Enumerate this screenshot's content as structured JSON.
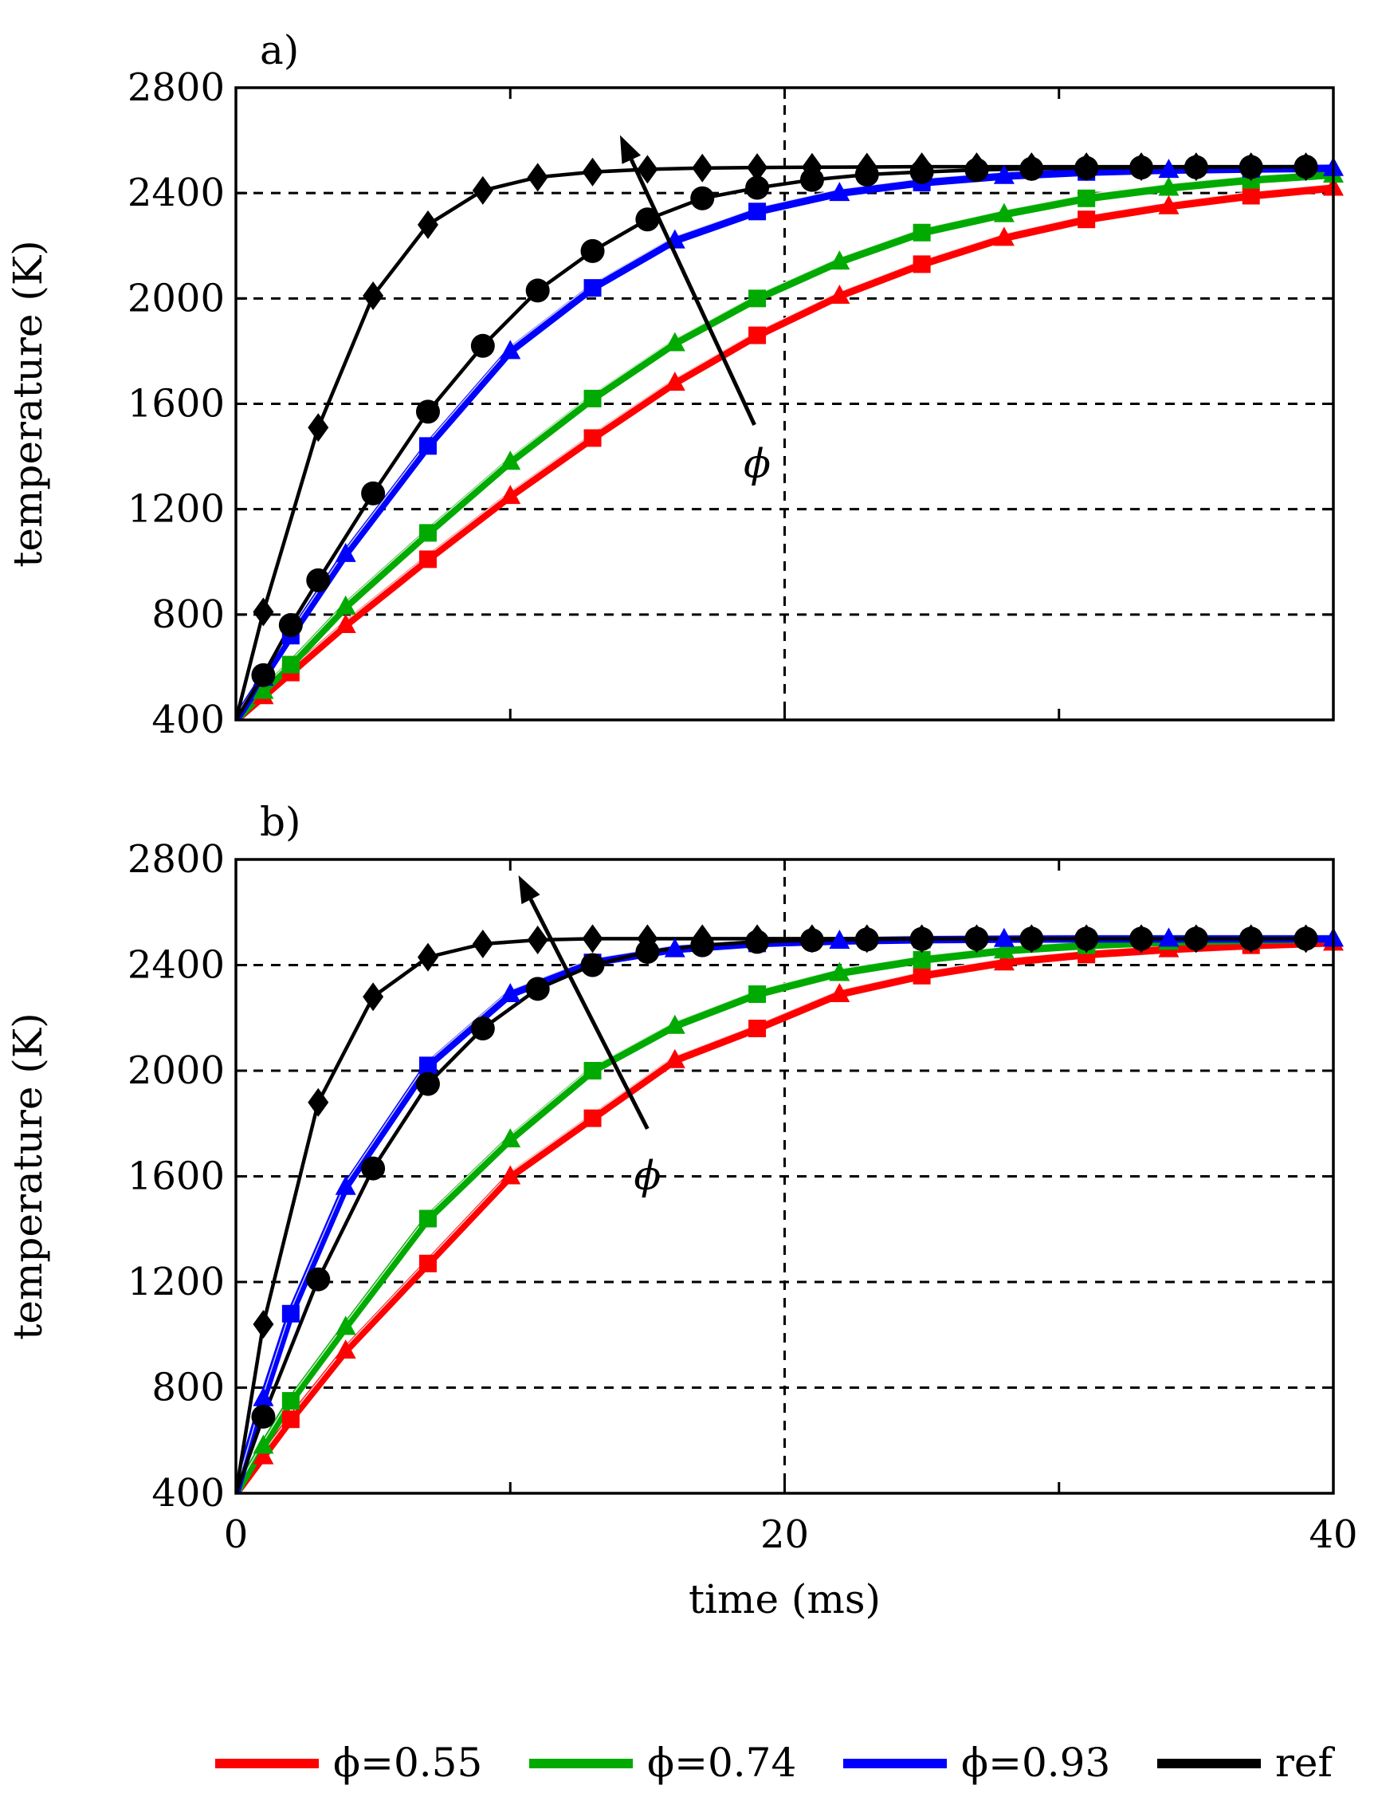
{
  "chart_data": [
    {
      "type": "line",
      "panel_label": "a)",
      "title": "",
      "xlabel": "",
      "ylabel": "temperature (K)",
      "xlim": [
        0,
        40
      ],
      "ylim": [
        400,
        2800
      ],
      "yticks": [
        400,
        800,
        1200,
        1600,
        2000,
        2400,
        2800
      ],
      "xticks": [
        0,
        20,
        40
      ],
      "show_x_tick_labels": false,
      "grid": "dashed",
      "annotation": {
        "text": "ϕ",
        "arrow_from": [
          18.9,
          1520
        ],
        "arrow_to": [
          14.0,
          2620
        ],
        "label_at": [
          19.0,
          1370
        ]
      },
      "series": [
        {
          "name": "ϕ=0.55",
          "color": "#ff0000",
          "markers": [
            "square",
            "triangle"
          ],
          "x": [
            0,
            1,
            2,
            4,
            7,
            10,
            13,
            16,
            19,
            22,
            25,
            28,
            31,
            34,
            37,
            40
          ],
          "y": [
            400,
            490,
            580,
            760,
            1010,
            1250,
            1470,
            1680,
            1860,
            2010,
            2130,
            2230,
            2300,
            2350,
            2390,
            2420
          ]
        },
        {
          "name": "ϕ=0.74",
          "color": "#00aa00",
          "markers": [
            "square",
            "triangle"
          ],
          "x": [
            0,
            1,
            2,
            4,
            7,
            10,
            13,
            16,
            19,
            22,
            25,
            28,
            31,
            34,
            37,
            40
          ],
          "y": [
            400,
            510,
            610,
            830,
            1110,
            1380,
            1620,
            1830,
            2000,
            2140,
            2250,
            2320,
            2380,
            2420,
            2450,
            2470
          ]
        },
        {
          "name": "ϕ=0.93",
          "color": "#0000ff",
          "markers": [
            "square",
            "triangle"
          ],
          "x": [
            0,
            1,
            2,
            4,
            7,
            10,
            13,
            16,
            19,
            22,
            25,
            28,
            31,
            34,
            37,
            40
          ],
          "y": [
            400,
            560,
            720,
            1030,
            1440,
            1800,
            2040,
            2220,
            2330,
            2400,
            2440,
            2465,
            2480,
            2488,
            2492,
            2495
          ]
        },
        {
          "name": "ref",
          "color": "#000000",
          "markers": [
            "circle",
            "diamond"
          ],
          "x": [
            0,
            1,
            2,
            3,
            5,
            7,
            9,
            11,
            13,
            15,
            17,
            19,
            21,
            23,
            25,
            27,
            29,
            31,
            33,
            35,
            37,
            39
          ],
          "y": [
            400,
            570,
            760,
            930,
            1260,
            1570,
            1820,
            2030,
            2180,
            2300,
            2380,
            2420,
            2450,
            2470,
            2480,
            2488,
            2492,
            2495,
            2497,
            2498,
            2499,
            2500
          ]
        },
        {
          "name": "",
          "color": "#000000",
          "markers": [
            "diamond"
          ],
          "x": [
            0,
            1,
            3,
            5,
            7,
            9,
            11,
            13,
            15,
            17,
            19,
            21,
            23,
            25,
            27,
            29,
            31,
            33,
            35,
            37,
            39
          ],
          "y": [
            400,
            810,
            1510,
            2010,
            2280,
            2410,
            2460,
            2480,
            2490,
            2495,
            2497,
            2498,
            2499,
            2500,
            2500,
            2500,
            2500,
            2500,
            2500,
            2500,
            2500
          ]
        }
      ]
    },
    {
      "type": "line",
      "panel_label": "b)",
      "title": "",
      "xlabel": "time (ms)",
      "ylabel": "temperature (K)",
      "xlim": [
        0,
        40
      ],
      "ylim": [
        400,
        2800
      ],
      "yticks": [
        400,
        800,
        1200,
        1600,
        2000,
        2400,
        2800
      ],
      "xticks": [
        0,
        20,
        40
      ],
      "show_x_tick_labels": true,
      "grid": "dashed",
      "annotation": {
        "text": "ϕ",
        "arrow_from": [
          15.0,
          1780
        ],
        "arrow_to": [
          10.3,
          2740
        ],
        "label_at": [
          15.0,
          1600
        ]
      },
      "series": [
        {
          "name": "ϕ=0.55",
          "color": "#ff0000",
          "markers": [
            "square",
            "triangle"
          ],
          "x": [
            0,
            1,
            2,
            4,
            7,
            10,
            13,
            16,
            19,
            22,
            25,
            28,
            31,
            34,
            37,
            40
          ],
          "y": [
            400,
            540,
            680,
            940,
            1270,
            1600,
            1820,
            2040,
            2160,
            2290,
            2360,
            2410,
            2440,
            2460,
            2475,
            2485
          ]
        },
        {
          "name": "ϕ=0.74",
          "color": "#00aa00",
          "markers": [
            "square",
            "triangle"
          ],
          "x": [
            0,
            1,
            2,
            4,
            7,
            10,
            13,
            16,
            19,
            22,
            25,
            28,
            31,
            34,
            37,
            40
          ],
          "y": [
            400,
            580,
            750,
            1030,
            1440,
            1740,
            2000,
            2170,
            2290,
            2370,
            2420,
            2455,
            2475,
            2488,
            2495,
            2500
          ]
        },
        {
          "name": "ϕ=0.93",
          "color": "#0000ff",
          "markers": [
            "square",
            "triangle"
          ],
          "x": [
            0,
            1,
            2,
            4,
            7,
            10,
            13,
            16,
            19,
            22,
            25,
            28,
            31,
            34,
            37,
            40
          ],
          "y": [
            400,
            760,
            1080,
            1560,
            2020,
            2290,
            2410,
            2460,
            2482,
            2492,
            2497,
            2499,
            2500,
            2500,
            2500,
            2500
          ]
        },
        {
          "name": "ref",
          "color": "#000000",
          "markers": [
            "circle",
            "diamond"
          ],
          "x": [
            0,
            1,
            3,
            5,
            7,
            9,
            11,
            13,
            15,
            17,
            19,
            21,
            23,
            25,
            27,
            29,
            31,
            33,
            35,
            37,
            39
          ],
          "y": [
            400,
            690,
            1210,
            1630,
            1950,
            2160,
            2310,
            2400,
            2450,
            2475,
            2488,
            2494,
            2497,
            2499,
            2500,
            2500,
            2500,
            2500,
            2500,
            2500,
            2500
          ]
        },
        {
          "name": "",
          "color": "#000000",
          "markers": [
            "diamond"
          ],
          "x": [
            0,
            1,
            3,
            5,
            7,
            9,
            11,
            13,
            15,
            17,
            19,
            21,
            23,
            25,
            27,
            29,
            31,
            33,
            35,
            37,
            39
          ],
          "y": [
            400,
            1040,
            1880,
            2280,
            2430,
            2480,
            2495,
            2500,
            2500,
            2500,
            2500,
            2500,
            2500,
            2500,
            2500,
            2500,
            2500,
            2500,
            2500,
            2500,
            2500
          ]
        }
      ]
    }
  ],
  "legend": {
    "placement": "bottom",
    "entries": [
      {
        "label": "ϕ=0.55",
        "color": "#ff0000"
      },
      {
        "label": "ϕ=0.74",
        "color": "#00aa00"
      },
      {
        "label": "ϕ=0.93",
        "color": "#0000ff"
      },
      {
        "label": "ref",
        "color": "#000000"
      }
    ]
  }
}
